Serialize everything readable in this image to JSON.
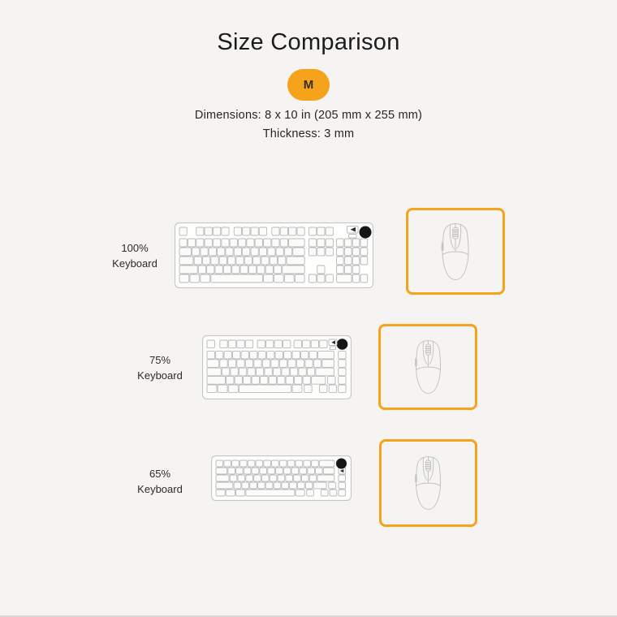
{
  "header": {
    "title": "Size Comparison",
    "size_badge": "M",
    "dimensions": "Dimensions: 8 x 10 in (205 mm x 255 mm)",
    "thickness": "Thickness: 3 mm"
  },
  "rows": [
    {
      "percent": "100%",
      "label": "Keyboard"
    },
    {
      "percent": "75%",
      "label": "Keyboard"
    },
    {
      "percent": "65%",
      "label": "Keyboard"
    }
  ],
  "icons": {
    "keyboard": "keyboard-top-view-icon",
    "mouse": "mouse-top-view-icon",
    "knob": "rotary-knob-icon",
    "mousepad": "mousepad-outline"
  },
  "colors": {
    "accent_orange": "#f6a31c",
    "background": "#f5f4f2",
    "text": "#222222",
    "line_art": "#c2c2c2",
    "knob_black": "#161616"
  }
}
